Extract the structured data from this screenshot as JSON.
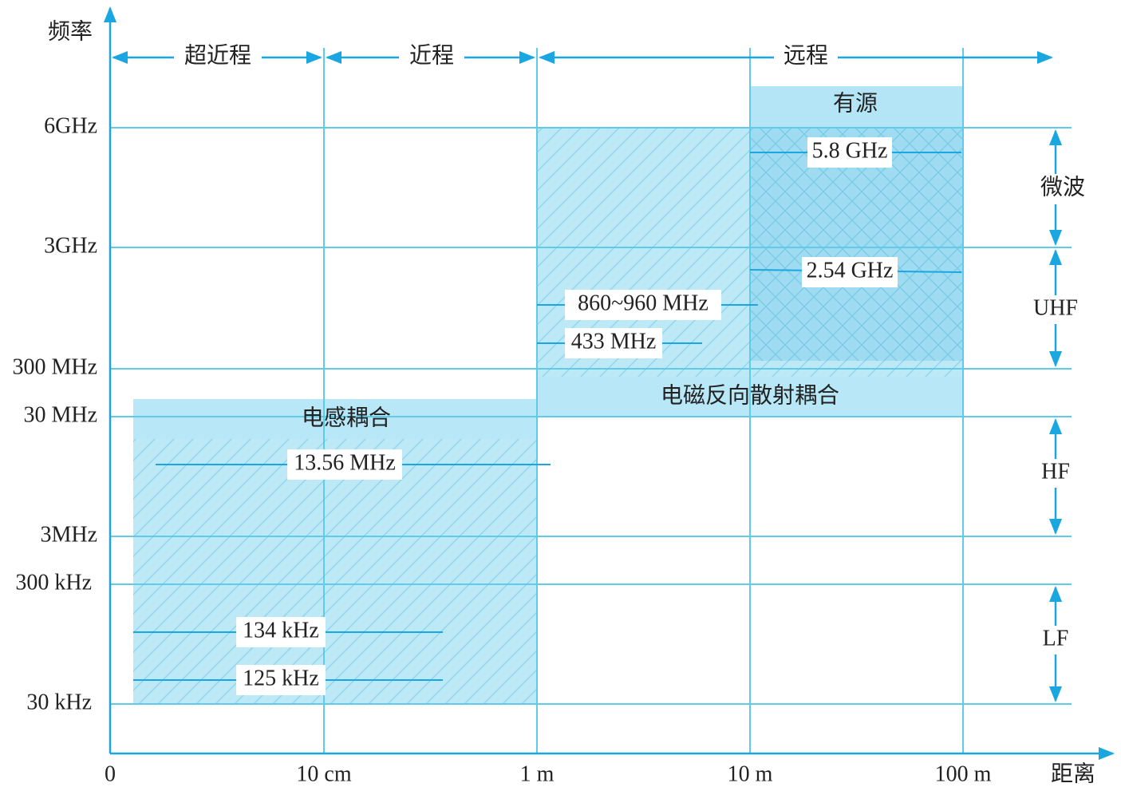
{
  "axes": {
    "y_title": "频率",
    "x_title": "距离"
  },
  "y_ticks": [
    "6GHz",
    "3GHz",
    "300 MHz",
    "30 MHz",
    "3MHz",
    "300 kHz",
    "30 kHz"
  ],
  "x_ticks": [
    "0",
    "10 cm",
    "1 m",
    "10 m",
    "100 m"
  ],
  "ranges": [
    "超近程",
    "近程",
    "远程"
  ],
  "bands": [
    "微波",
    "UHF",
    "HF",
    "LF"
  ],
  "regions": {
    "inductive": "电感耦合",
    "backscatter": "电磁反向散射耦合",
    "active": "有源"
  },
  "frequencies": [
    "13.56 MHz",
    "134 kHz",
    "125 kHz",
    "860~960 MHz",
    "433 MHz",
    "5.8 GHz",
    "2.54 GHz"
  ]
}
